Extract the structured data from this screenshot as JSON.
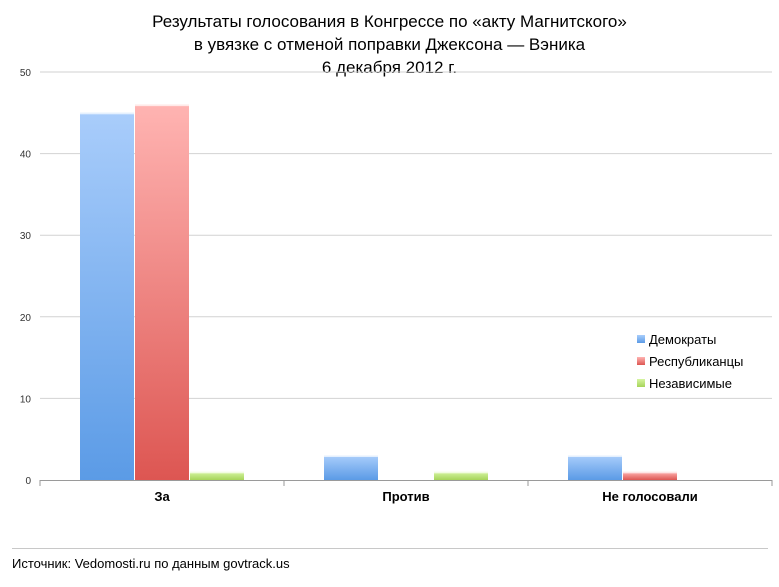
{
  "chart_data": {
    "type": "bar",
    "title_lines": [
      "Результаты голосования в Конгрессе по «акту Магнитского»",
      "в увязке с отменой поправки Джексона — Вэника",
      "6 декабря 2012 г."
    ],
    "categories": [
      "За",
      "Против",
      "Не голосовали"
    ],
    "series": [
      {
        "name": "Демократы",
        "values": [
          45,
          3,
          3
        ],
        "color": "#5b9be6",
        "color_light": "#a9cdfb"
      },
      {
        "name": "Республиканцы",
        "values": [
          46,
          0,
          1
        ],
        "color": "#dd5652",
        "color_light": "#ffb4b2"
      },
      {
        "name": "Независимые",
        "values": [
          1,
          1,
          0
        ],
        "color": "#a6d45a",
        "color_light": "#d6f5a2"
      }
    ],
    "ylim": [
      0,
      50
    ],
    "yticks": [
      "0",
      "10",
      "20",
      "30",
      "40",
      "50"
    ],
    "grid": true,
    "legend_position": "right"
  },
  "source": "Источник: Vedomosti.ru по данным govtrack.us"
}
